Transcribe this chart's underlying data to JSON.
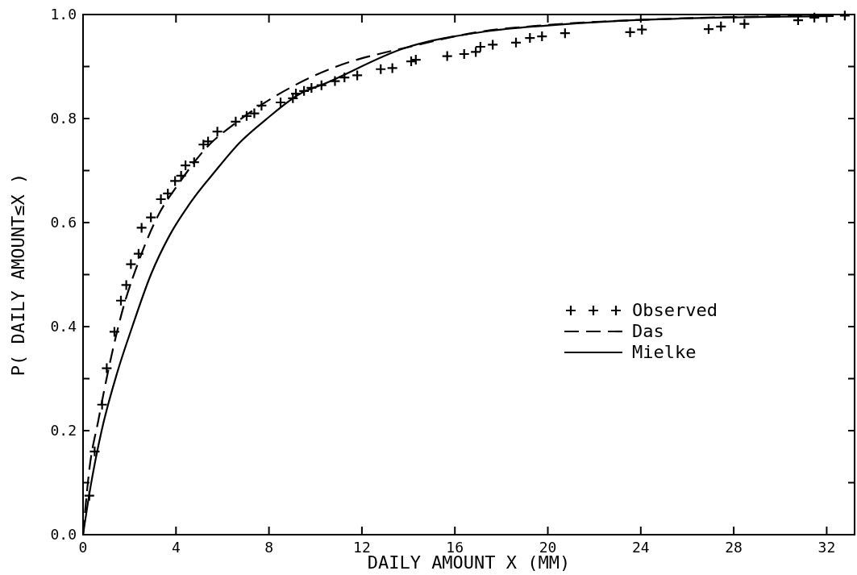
{
  "chart_data": {
    "type": "line",
    "xlabel": "DAILY AMOUNT X (MM)",
    "ylabel": "P( DAILY AMOUNT≤X )",
    "xlim": [
      0,
      33.2
    ],
    "xticks": [
      0,
      4,
      8,
      12,
      16,
      20,
      24,
      28,
      32
    ],
    "ylim": [
      0,
      1.0
    ],
    "yticks": [
      {
        "value": 0,
        "label": "0.0"
      },
      {
        "value": 0.1,
        "label": null
      },
      {
        "value": 0.2,
        "label": "0.2"
      },
      {
        "value": 0.3,
        "label": null
      },
      {
        "value": 0.4,
        "label": "0.4"
      },
      {
        "value": 0.5,
        "label": null
      },
      {
        "value": 0.6,
        "label": "0.6"
      },
      {
        "value": 0.7,
        "label": null
      },
      {
        "value": 0.8,
        "label": "0.8"
      },
      {
        "value": 0.9,
        "label": null
      },
      {
        "value": 1.0,
        "label": "1.0"
      }
    ],
    "legend": "right",
    "grid": false,
    "series": [
      {
        "name": "Observed",
        "type": "scatter",
        "marker": "cross",
        "color": "#000000",
        "x": [
          0.27,
          0.5,
          0.82,
          1.02,
          1.35,
          1.63,
          1.86,
          2.06,
          2.39,
          2.52,
          2.92,
          3.35,
          3.65,
          3.96,
          4.22,
          4.41,
          4.78,
          5.18,
          5.38,
          5.78,
          6.57,
          7.04,
          7.37,
          7.68,
          8.5,
          9.03,
          9.16,
          9.51,
          9.83,
          10.26,
          10.84,
          11.25,
          11.8,
          12.81,
          13.31,
          14.12,
          14.32,
          15.67,
          16.4,
          16.9,
          17.1,
          17.63,
          18.63,
          19.23,
          19.75,
          20.74,
          23.54,
          24.05,
          26.92,
          27.45,
          28.46,
          30.77,
          31.47,
          32.78
        ],
        "values": [
          0.075,
          0.16,
          0.25,
          0.32,
          0.39,
          0.45,
          0.48,
          0.52,
          0.54,
          0.59,
          0.61,
          0.645,
          0.656,
          0.68,
          0.69,
          0.71,
          0.716,
          0.75,
          0.756,
          0.775,
          0.794,
          0.805,
          0.81,
          0.825,
          0.831,
          0.839,
          0.848,
          0.853,
          0.859,
          0.864,
          0.872,
          0.879,
          0.883,
          0.895,
          0.897,
          0.91,
          0.913,
          0.92,
          0.924,
          0.928,
          0.938,
          0.942,
          0.946,
          0.955,
          0.958,
          0.964,
          0.966,
          0.971,
          0.972,
          0.977,
          0.982,
          0.989,
          0.994,
          0.998
        ]
      },
      {
        "name": "Das",
        "line_style": "dashed",
        "color": "#000000",
        "x": [
          0,
          0.27,
          0.66,
          1.13,
          1.66,
          2.39,
          3.19,
          4.12,
          5.31,
          6.64,
          9.03,
          11.7,
          12.63,
          13.67,
          17.26,
          20,
          24.8,
          32.3
        ],
        "values": [
          0,
          0.125,
          0.22,
          0.325,
          0.425,
          0.525,
          0.61,
          0.675,
          0.744,
          0.794,
          0.862,
          0.912,
          0.923,
          0.934,
          0.968,
          0.98,
          0.991,
          0.998
        ]
      },
      {
        "name": "Mielke",
        "line_style": "solid",
        "color": "#000000",
        "x": [
          0,
          0.33,
          0.8,
          1.46,
          2.12,
          2.92,
          3.72,
          4.65,
          5.71,
          6.77,
          7.84,
          9.43,
          10.33,
          13.8,
          17.26,
          20,
          24.8,
          32.3
        ],
        "values": [
          0,
          0.094,
          0.2,
          0.31,
          0.4,
          0.5,
          0.575,
          0.64,
          0.7,
          0.755,
          0.797,
          0.85,
          0.866,
          0.935,
          0.967,
          0.979,
          0.991,
          0.997
        ]
      }
    ]
  }
}
